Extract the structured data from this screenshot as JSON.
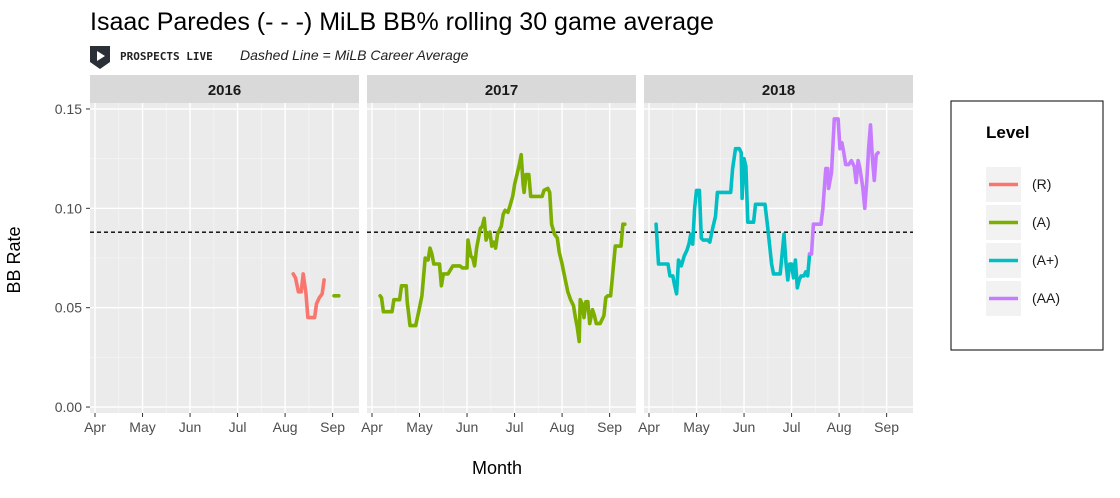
{
  "title": "Isaac Paredes (- - -) MiLB BB% rolling 30 game average",
  "subtitle": "Dashed Line = MiLB Career Average",
  "logo_text": "PROSPECTS LIVE",
  "colors": {
    "R": "#F8766D",
    "A": "#7CAE00",
    "A+": "#00BFC4",
    "AA": "#C77CFF"
  },
  "chart_data": {
    "type": "line",
    "xlabel": "Month",
    "ylabel": "BB Rate",
    "ylim": [
      -0.003,
      0.153
    ],
    "xlim": [
      0,
      5.45
    ],
    "yticks": [
      0.0,
      0.05,
      0.1,
      0.15
    ],
    "ytick_labels": [
      "0.00",
      "0.05",
      "0.10",
      "0.15"
    ],
    "xtick_labels": [
      "Apr",
      "May",
      "Jun",
      "Jul",
      "Aug",
      "Sep"
    ],
    "reference_line": 0.088,
    "grid": true,
    "legend": {
      "title": "Level",
      "position": "right",
      "entries": [
        "(R)",
        "(A)",
        "(A+)",
        "(AA)"
      ]
    },
    "facets": [
      {
        "label": "2016",
        "series": [
          {
            "level": "R",
            "points": [
              [
                4.17,
                0.067
              ],
              [
                4.22,
                0.065
              ],
              [
                4.28,
                0.058
              ],
              [
                4.34,
                0.058
              ],
              [
                4.38,
                0.067
              ],
              [
                4.44,
                0.057
              ],
              [
                4.48,
                0.045
              ],
              [
                4.62,
                0.045
              ],
              [
                4.66,
                0.052
              ],
              [
                4.72,
                0.055
              ],
              [
                4.78,
                0.057
              ],
              [
                4.82,
                0.064
              ]
            ]
          },
          {
            "level": "A",
            "points": [
              [
                5.03,
                0.056
              ],
              [
                5.13,
                0.056
              ]
            ]
          }
        ]
      },
      {
        "label": "2017",
        "series": [
          {
            "level": "A",
            "points": [
              [
                0.17,
                0.056
              ],
              [
                0.2,
                0.055
              ],
              [
                0.24,
                0.048
              ],
              [
                0.42,
                0.048
              ],
              [
                0.46,
                0.054
              ],
              [
                0.58,
                0.054
              ],
              [
                0.62,
                0.061
              ],
              [
                0.72,
                0.061
              ],
              [
                0.74,
                0.053
              ],
              [
                0.78,
                0.045
              ],
              [
                0.8,
                0.041
              ],
              [
                0.92,
                0.041
              ],
              [
                1.0,
                0.05
              ],
              [
                1.05,
                0.056
              ],
              [
                1.12,
                0.075
              ],
              [
                1.18,
                0.074
              ],
              [
                1.22,
                0.08
              ],
              [
                1.26,
                0.077
              ],
              [
                1.3,
                0.072
              ],
              [
                1.42,
                0.072
              ],
              [
                1.46,
                0.061
              ],
              [
                1.5,
                0.067
              ],
              [
                1.56,
                0.067
              ],
              [
                1.6,
                0.067
              ],
              [
                1.7,
                0.071
              ],
              [
                1.85,
                0.071
              ],
              [
                1.9,
                0.07
              ],
              [
                2.0,
                0.07
              ],
              [
                2.02,
                0.084
              ],
              [
                2.08,
                0.076
              ],
              [
                2.12,
                0.075
              ],
              [
                2.16,
                0.071
              ],
              [
                2.2,
                0.08
              ],
              [
                2.24,
                0.085
              ],
              [
                2.28,
                0.09
              ],
              [
                2.32,
                0.091
              ],
              [
                2.36,
                0.095
              ],
              [
                2.4,
                0.084
              ],
              [
                2.44,
                0.087
              ],
              [
                2.48,
                0.088
              ],
              [
                2.52,
                0.081
              ],
              [
                2.56,
                0.083
              ],
              [
                2.6,
                0.08
              ],
              [
                2.64,
                0.087
              ],
              [
                2.72,
                0.091
              ],
              [
                2.76,
                0.097
              ],
              [
                2.8,
                0.099
              ],
              [
                2.86,
                0.098
              ],
              [
                2.9,
                0.101
              ],
              [
                2.96,
                0.106
              ],
              [
                3.0,
                0.112
              ],
              [
                3.06,
                0.118
              ],
              [
                3.1,
                0.122
              ],
              [
                3.14,
                0.127
              ],
              [
                3.18,
                0.112
              ],
              [
                3.2,
                0.108
              ],
              [
                3.24,
                0.117
              ],
              [
                3.3,
                0.117
              ],
              [
                3.34,
                0.106
              ],
              [
                3.58,
                0.106
              ],
              [
                3.62,
                0.109
              ],
              [
                3.7,
                0.11
              ],
              [
                3.74,
                0.108
              ],
              [
                3.78,
                0.092
              ],
              [
                3.84,
                0.087
              ],
              [
                3.9,
                0.085
              ],
              [
                3.94,
                0.078
              ],
              [
                4.0,
                0.072
              ],
              [
                4.06,
                0.065
              ],
              [
                4.12,
                0.058
              ],
              [
                4.18,
                0.054
              ],
              [
                4.24,
                0.051
              ],
              [
                4.28,
                0.045
              ],
              [
                4.32,
                0.04
              ],
              [
                4.36,
                0.033
              ],
              [
                4.38,
                0.054
              ],
              [
                4.42,
                0.052
              ],
              [
                4.46,
                0.045
              ],
              [
                4.5,
                0.053
              ],
              [
                4.54,
                0.053
              ],
              [
                4.58,
                0.042
              ],
              [
                4.64,
                0.049
              ],
              [
                4.68,
                0.046
              ],
              [
                4.72,
                0.042
              ],
              [
                4.8,
                0.042
              ],
              [
                4.88,
                0.046
              ],
              [
                4.92,
                0.055
              ],
              [
                4.96,
                0.056
              ],
              [
                5.02,
                0.056
              ],
              [
                5.06,
                0.066
              ],
              [
                5.12,
                0.081
              ],
              [
                5.24,
                0.081
              ],
              [
                5.28,
                0.092
              ],
              [
                5.32,
                0.092
              ]
            ]
          }
        ]
      },
      {
        "label": "2018",
        "series": [
          {
            "level": "A+",
            "points": [
              [
                0.15,
                0.092
              ],
              [
                0.2,
                0.072
              ],
              [
                0.4,
                0.072
              ],
              [
                0.44,
                0.066
              ],
              [
                0.5,
                0.066
              ],
              [
                0.54,
                0.061
              ],
              [
                0.58,
                0.057
              ],
              [
                0.62,
                0.074
              ],
              [
                0.68,
                0.071
              ],
              [
                0.74,
                0.076
              ],
              [
                0.8,
                0.079
              ],
              [
                0.84,
                0.082
              ],
              [
                0.88,
                0.087
              ],
              [
                0.92,
                0.082
              ],
              [
                0.96,
                0.1
              ],
              [
                1.0,
                0.109
              ],
              [
                1.06,
                0.109
              ],
              [
                1.1,
                0.085
              ],
              [
                1.14,
                0.084
              ],
              [
                1.24,
                0.084
              ],
              [
                1.28,
                0.083
              ],
              [
                1.34,
                0.09
              ],
              [
                1.4,
                0.096
              ],
              [
                1.44,
                0.108
              ],
              [
                1.72,
                0.108
              ],
              [
                1.76,
                0.12
              ],
              [
                1.82,
                0.13
              ],
              [
                1.9,
                0.13
              ],
              [
                1.94,
                0.128
              ],
              [
                1.96,
                0.105
              ],
              [
                2.0,
                0.125
              ],
              [
                2.04,
                0.121
              ],
              [
                2.08,
                0.093
              ],
              [
                2.2,
                0.093
              ],
              [
                2.24,
                0.102
              ],
              [
                2.44,
                0.102
              ],
              [
                2.5,
                0.09
              ],
              [
                2.58,
                0.072
              ],
              [
                2.62,
                0.067
              ],
              [
                2.76,
                0.067
              ],
              [
                2.8,
                0.077
              ],
              [
                2.84,
                0.087
              ],
              [
                2.88,
                0.073
              ],
              [
                2.92,
                0.064
              ],
              [
                2.96,
                0.072
              ],
              [
                3.0,
                0.072
              ],
              [
                3.04,
                0.065
              ],
              [
                3.08,
                0.074
              ],
              [
                3.12,
                0.06
              ],
              [
                3.16,
                0.064
              ],
              [
                3.2,
                0.066
              ],
              [
                3.26,
                0.066
              ],
              [
                3.3,
                0.068
              ],
              [
                3.34,
                0.066
              ],
              [
                3.38,
                0.077
              ]
            ]
          },
          {
            "level": "AA",
            "points": [
              [
                3.38,
                0.077
              ],
              [
                3.42,
                0.077
              ],
              [
                3.46,
                0.092
              ],
              [
                3.62,
                0.092
              ],
              [
                3.66,
                0.1
              ],
              [
                3.72,
                0.12
              ],
              [
                3.76,
                0.12
              ],
              [
                3.78,
                0.11
              ],
              [
                3.84,
                0.118
              ],
              [
                3.9,
                0.145
              ],
              [
                3.98,
                0.145
              ],
              [
                4.02,
                0.13
              ],
              [
                4.06,
                0.133
              ],
              [
                4.1,
                0.128
              ],
              [
                4.14,
                0.122
              ],
              [
                4.2,
                0.122
              ],
              [
                4.26,
                0.124
              ],
              [
                4.32,
                0.121
              ],
              [
                4.36,
                0.113
              ],
              [
                4.4,
                0.124
              ],
              [
                4.44,
                0.12
              ],
              [
                4.5,
                0.11
              ],
              [
                4.54,
                0.1
              ],
              [
                4.58,
                0.113
              ],
              [
                4.62,
                0.13
              ],
              [
                4.66,
                0.142
              ],
              [
                4.7,
                0.125
              ],
              [
                4.74,
                0.114
              ],
              [
                4.78,
                0.127
              ],
              [
                4.82,
                0.128
              ]
            ]
          }
        ]
      }
    ]
  }
}
